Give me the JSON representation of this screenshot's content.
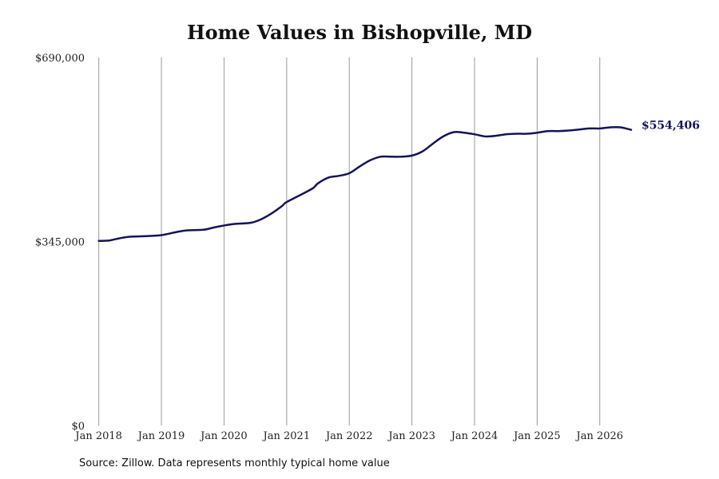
{
  "chart_data": {
    "type": "line",
    "title": "Home Values in Bishopville, MD",
    "source": "Source: Zillow. Data represents monthly typical home value",
    "ylim": [
      0,
      690000
    ],
    "y_tick_values": [
      0,
      345000,
      690000
    ],
    "y_tick_labels": [
      "$0",
      "$345,000",
      "$690,000"
    ],
    "x_tick_values": [
      2018,
      2019,
      2020,
      2021,
      2022,
      2023,
      2024,
      2025,
      2026
    ],
    "x_tick_labels": [
      "Jan 2018",
      "Jan 2019",
      "Jan 2020",
      "Jan 2021",
      "Jan 2022",
      "Jan 2023",
      "Jan 2024",
      "Jan 2025",
      "Jan 2026"
    ],
    "xlim": [
      2017.8,
      2027.1
    ],
    "grid": "vertical",
    "line_color": "#14145a",
    "end_label": "$554,406",
    "series": [
      {
        "x": [
          2018.0,
          2018.17,
          2018.33,
          2018.5,
          2018.75,
          2019.0,
          2019.25,
          2019.42,
          2019.67,
          2019.83,
          2020.0,
          2020.17,
          2020.42,
          2020.58,
          2020.75,
          2020.92,
          2021.0,
          2021.25,
          2021.42,
          2021.5,
          2021.67,
          2021.83,
          2022.0,
          2022.17,
          2022.33,
          2022.5,
          2022.67,
          2022.83,
          2023.0,
          2023.17,
          2023.33,
          2023.5,
          2023.67,
          2023.83,
          2024.0,
          2024.17,
          2024.33,
          2024.5,
          2024.67,
          2024.83,
          2025.0,
          2025.17,
          2025.33,
          2025.5,
          2025.67,
          2025.83,
          2026.0,
          2026.17,
          2026.33,
          2026.5
        ],
        "values": [
          346000,
          347000,
          351000,
          354000,
          355000,
          357000,
          363000,
          366000,
          367000,
          371000,
          375000,
          378000,
          380000,
          386000,
          397000,
          411000,
          419000,
          434000,
          445000,
          454000,
          465000,
          468000,
          473000,
          486000,
          497000,
          504000,
          504000,
          504000,
          506000,
          514000,
          528000,
          542000,
          550000,
          549000,
          546000,
          542000,
          543000,
          546000,
          547000,
          547000,
          549000,
          552000,
          552000,
          553000,
          555000,
          557000,
          557000,
          559000,
          559000,
          554406
        ]
      }
    ]
  }
}
